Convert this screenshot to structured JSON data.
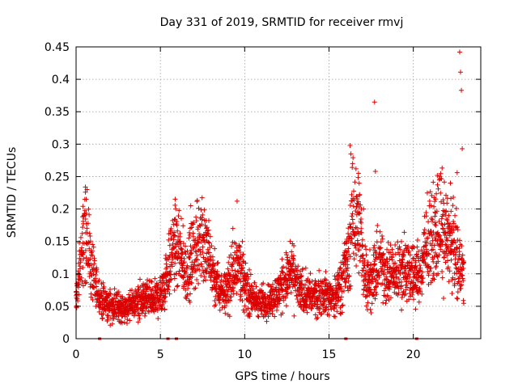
{
  "chart_data": {
    "type": "scatter",
    "title": "Day 331 of 2019, SRMTID for receiver rmvj",
    "xlabel": "GPS time / hours",
    "ylabel": "SRMTID / TECUs",
    "xlim": [
      0,
      24
    ],
    "ylim": [
      0,
      0.45
    ],
    "xticks": [
      "0",
      "5",
      "10",
      "15",
      "20"
    ],
    "yticks": [
      "0",
      "0.05",
      "0.1",
      "0.15",
      "0.2",
      "0.25",
      "0.3",
      "0.35",
      "0.4",
      "0.45"
    ],
    "grid": true,
    "marker": "+",
    "color": "#dd0000",
    "series": [
      {
        "trend": [
          [
            0.0,
            0.06
          ],
          [
            0.3,
            0.12
          ],
          [
            0.5,
            0.17
          ],
          [
            0.8,
            0.13
          ],
          [
            1.0,
            0.09
          ],
          [
            1.3,
            0.07
          ],
          [
            1.6,
            0.055
          ],
          [
            2.0,
            0.05
          ],
          [
            2.5,
            0.05
          ],
          [
            3.0,
            0.045
          ],
          [
            3.5,
            0.055
          ],
          [
            4.0,
            0.06
          ],
          [
            4.5,
            0.06
          ],
          [
            5.0,
            0.065
          ],
          [
            5.5,
            0.11
          ],
          [
            5.8,
            0.15
          ],
          [
            6.2,
            0.12
          ],
          [
            6.6,
            0.1
          ],
          [
            7.0,
            0.13
          ],
          [
            7.4,
            0.16
          ],
          [
            7.8,
            0.13
          ],
          [
            8.2,
            0.09
          ],
          [
            8.6,
            0.07
          ],
          [
            9.0,
            0.08
          ],
          [
            9.3,
            0.1
          ],
          [
            9.6,
            0.13
          ],
          [
            10.0,
            0.08
          ],
          [
            10.5,
            0.06
          ],
          [
            11.0,
            0.055
          ],
          [
            11.5,
            0.06
          ],
          [
            12.0,
            0.07
          ],
          [
            12.4,
            0.09
          ],
          [
            12.8,
            0.1
          ],
          [
            13.2,
            0.075
          ],
          [
            14.0,
            0.065
          ],
          [
            14.8,
            0.07
          ],
          [
            15.3,
            0.06
          ],
          [
            16.2,
            0.13
          ],
          [
            16.5,
            0.2
          ],
          [
            16.8,
            0.18
          ],
          [
            17.0,
            0.11
          ],
          [
            17.5,
            0.09
          ],
          [
            18.0,
            0.12
          ],
          [
            18.5,
            0.1
          ],
          [
            19.0,
            0.1
          ],
          [
            19.5,
            0.11
          ],
          [
            20.0,
            0.1
          ],
          [
            20.4,
            0.1
          ],
          [
            20.8,
            0.14
          ],
          [
            21.2,
            0.16
          ],
          [
            21.6,
            0.18
          ],
          [
            22.0,
            0.16
          ],
          [
            22.4,
            0.14
          ],
          [
            22.8,
            0.11
          ],
          [
            23.0,
            0.1
          ]
        ],
        "outliers": [
          [
            16.25,
            0.298
          ],
          [
            16.3,
            0.285
          ],
          [
            16.4,
            0.27
          ],
          [
            16.6,
            0.262
          ],
          [
            16.75,
            0.255
          ],
          [
            17.7,
            0.365
          ],
          [
            17.75,
            0.258
          ],
          [
            22.75,
            0.442
          ],
          [
            22.8,
            0.411
          ],
          [
            22.85,
            0.383
          ],
          [
            22.9,
            0.293
          ],
          [
            22.6,
            0.256
          ],
          [
            21.55,
            0.245
          ],
          [
            22.2,
            0.24
          ],
          [
            9.55,
            0.212
          ],
          [
            6.8,
            0.205
          ],
          [
            0.65,
            0.23
          ],
          [
            0.6,
            0.215
          ],
          [
            9.3,
            0.17
          ],
          [
            12.7,
            0.15
          ],
          [
            17.05,
            0.2
          ]
        ],
        "gaps_on_x_axis": [
          1.4,
          5.45,
          5.95,
          16.0,
          20.2
        ]
      }
    ]
  }
}
